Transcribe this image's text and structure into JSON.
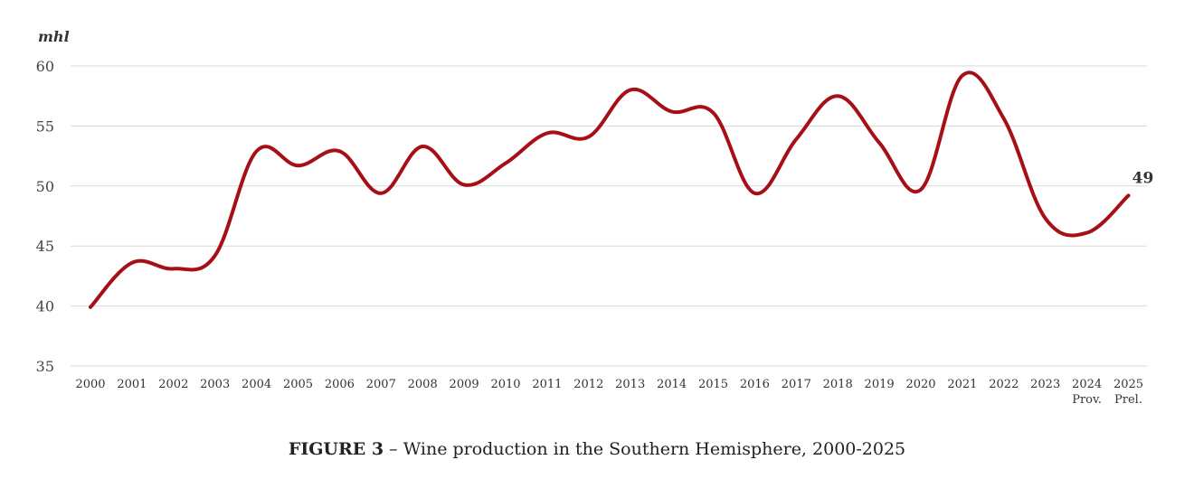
{
  "caption": {
    "figure_label": "FIGURE 3",
    "text": " – Wine production in the Southern Hemisphere, 2000-2025"
  },
  "chart_data": {
    "type": "line",
    "ylabel": "mhl",
    "ylim": [
      35,
      60
    ],
    "yticks": [
      35,
      40,
      45,
      50,
      55,
      60
    ],
    "grid": true,
    "categories": [
      "2000",
      "2001",
      "2002",
      "2003",
      "2004",
      "2005",
      "2006",
      "2007",
      "2008",
      "2009",
      "2010",
      "2011",
      "2012",
      "2013",
      "2014",
      "2015",
      "2016",
      "2017",
      "2018",
      "2019",
      "2020",
      "2021",
      "2022",
      "2023",
      "2024",
      "2025"
    ],
    "category_notes": {
      "2024": "Prov.",
      "2025": "Prel."
    },
    "series": [
      {
        "color": "#a50f15",
        "values": [
          39.9,
          43.6,
          43.1,
          44.2,
          52.9,
          51.7,
          52.9,
          49.4,
          53.3,
          50.1,
          51.9,
          54.4,
          54.1,
          58.0,
          56.2,
          56.1,
          49.4,
          53.9,
          57.5,
          53.6,
          49.7,
          59.2,
          55.6,
          47.3,
          46.1,
          49.2
        ]
      }
    ],
    "data_labels": [
      {
        "category": "2025",
        "text": "49"
      }
    ]
  }
}
